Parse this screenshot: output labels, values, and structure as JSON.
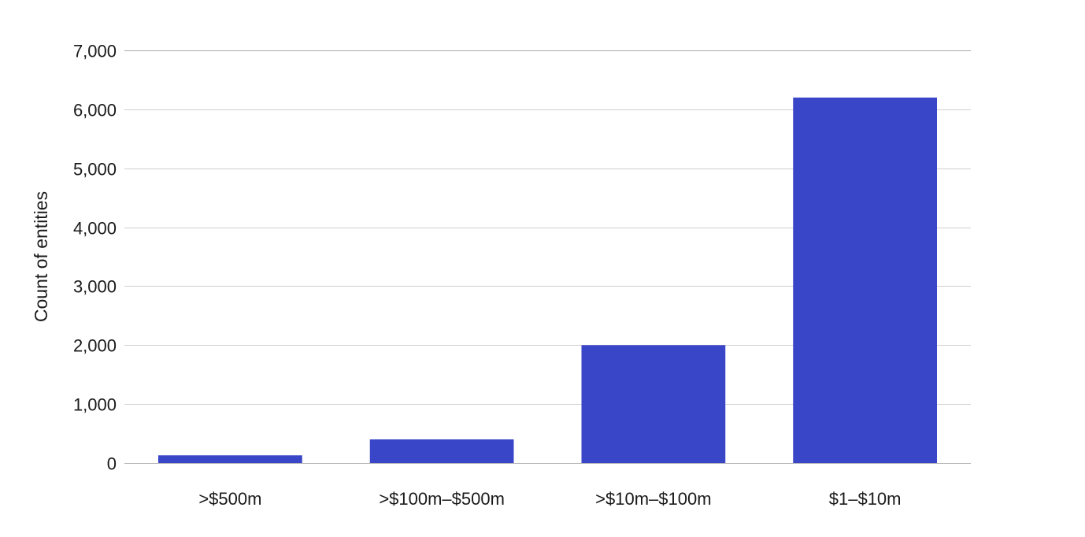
{
  "chart_data": {
    "type": "bar",
    "title": "",
    "xlabel": "",
    "ylabel": "Count of entities",
    "categories": [
      ">$500m",
      ">$100m–$500m",
      ">$10m–$100m",
      "$1–$10m"
    ],
    "values": [
      130,
      400,
      2000,
      6200
    ],
    "ylim": [
      0,
      7000
    ],
    "yticks": [
      0,
      1000,
      2000,
      3000,
      4000,
      5000,
      6000,
      7000
    ],
    "ytick_labels": [
      "0",
      "1,000",
      "2,000",
      "3,000",
      "4,000",
      "5,000",
      "6,000",
      "7,000"
    ],
    "grid": true,
    "legend": "none",
    "bar_color": "#3a46c8"
  }
}
